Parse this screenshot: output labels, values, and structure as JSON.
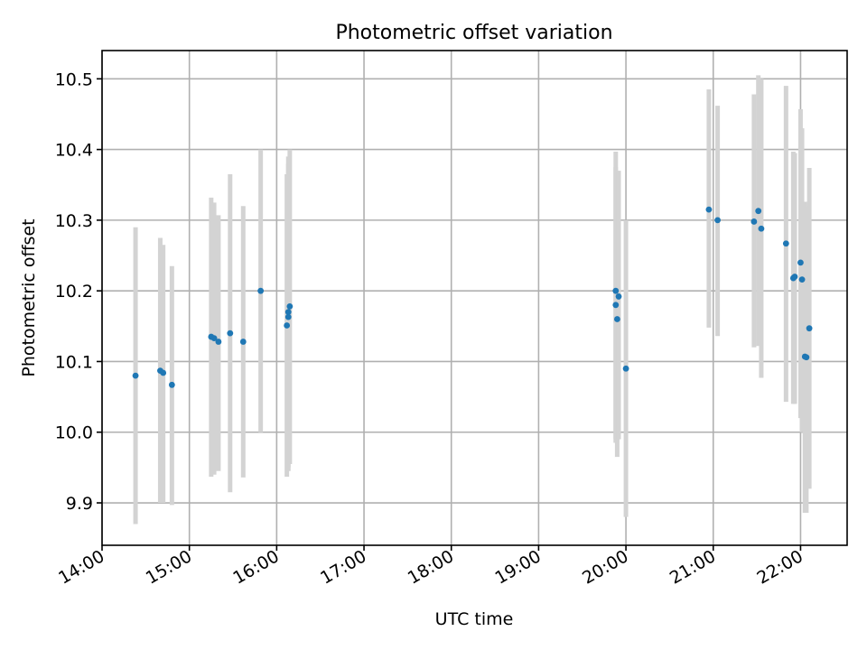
{
  "chart_data": {
    "type": "scatter",
    "title": "Photometric offset variation",
    "xlabel": "UTC time",
    "ylabel": "Photometric offset",
    "xlim": [
      "14:00",
      "22:32"
    ],
    "ylim": [
      9.84,
      10.54
    ],
    "grid": true,
    "xticks": [
      "14:00",
      "15:00",
      "16:00",
      "17:00",
      "18:00",
      "19:00",
      "20:00",
      "21:00",
      "22:00"
    ],
    "yticks": [
      "9.9",
      "10.0",
      "10.1",
      "10.2",
      "10.3",
      "10.4",
      "10.5"
    ],
    "series": [
      {
        "marker_color": "#1f77b4",
        "errorbar_color": "#d3d3d3",
        "points": [
          {
            "x": "14:23",
            "y": 10.08,
            "ylo": 9.87,
            "yhi": 10.29
          },
          {
            "x": "14:40",
            "y": 10.087,
            "ylo": 9.9,
            "yhi": 10.275
          },
          {
            "x": "14:42",
            "y": 10.084,
            "ylo": 9.9,
            "yhi": 10.265
          },
          {
            "x": "14:48",
            "y": 10.067,
            "ylo": 9.897,
            "yhi": 10.235
          },
          {
            "x": "15:15",
            "y": 10.135,
            "ylo": 9.937,
            "yhi": 10.332
          },
          {
            "x": "15:17",
            "y": 10.133,
            "ylo": 9.94,
            "yhi": 10.325
          },
          {
            "x": "15:20",
            "y": 10.128,
            "ylo": 9.945,
            "yhi": 10.307
          },
          {
            "x": "15:28",
            "y": 10.14,
            "ylo": 9.915,
            "yhi": 10.365
          },
          {
            "x": "15:37",
            "y": 10.128,
            "ylo": 9.936,
            "yhi": 10.32
          },
          {
            "x": "15:49",
            "y": 10.2,
            "ylo": 10.0,
            "yhi": 10.4
          },
          {
            "x": "16:07",
            "y": 10.151,
            "ylo": 9.937,
            "yhi": 10.365
          },
          {
            "x": "16:08",
            "y": 10.163,
            "ylo": 9.945,
            "yhi": 10.38
          },
          {
            "x": "16:08",
            "y": 10.17,
            "ylo": 9.95,
            "yhi": 10.39
          },
          {
            "x": "16:09",
            "y": 10.178,
            "ylo": 9.955,
            "yhi": 10.4
          },
          {
            "x": "19:53",
            "y": 10.2,
            "ylo": 9.99,
            "yhi": 10.397
          },
          {
            "x": "19:53",
            "y": 10.18,
            "ylo": 9.985,
            "yhi": 10.375
          },
          {
            "x": "19:54",
            "y": 10.16,
            "ylo": 9.965,
            "yhi": 10.355
          },
          {
            "x": "19:55",
            "y": 10.192,
            "ylo": 9.99,
            "yhi": 10.37
          },
          {
            "x": "20:00",
            "y": 10.09,
            "ylo": 9.88,
            "yhi": 10.3
          },
          {
            "x": "20:57",
            "y": 10.315,
            "ylo": 10.148,
            "yhi": 10.485
          },
          {
            "x": "21:03",
            "y": 10.3,
            "ylo": 10.136,
            "yhi": 10.462
          },
          {
            "x": "21:28",
            "y": 10.298,
            "ylo": 10.12,
            "yhi": 10.478
          },
          {
            "x": "21:31",
            "y": 10.313,
            "ylo": 10.122,
            "yhi": 10.505
          },
          {
            "x": "21:33",
            "y": 10.288,
            "ylo": 10.077,
            "yhi": 10.5
          },
          {
            "x": "21:50",
            "y": 10.267,
            "ylo": 10.043,
            "yhi": 10.49
          },
          {
            "x": "21:55",
            "y": 10.218,
            "ylo": 10.04,
            "yhi": 10.397
          },
          {
            "x": "21:56",
            "y": 10.22,
            "ylo": 10.04,
            "yhi": 10.395
          },
          {
            "x": "22:00",
            "y": 10.24,
            "ylo": 10.02,
            "yhi": 10.457
          },
          {
            "x": "22:01",
            "y": 10.216,
            "ylo": 10.0,
            "yhi": 10.43
          },
          {
            "x": "22:03",
            "y": 10.107,
            "ylo": 9.886,
            "yhi": 10.326
          },
          {
            "x": "22:04",
            "y": 10.106,
            "ylo": 9.886,
            "yhi": 10.32
          },
          {
            "x": "22:06",
            "y": 10.147,
            "ylo": 9.92,
            "yhi": 10.374
          }
        ]
      }
    ]
  }
}
